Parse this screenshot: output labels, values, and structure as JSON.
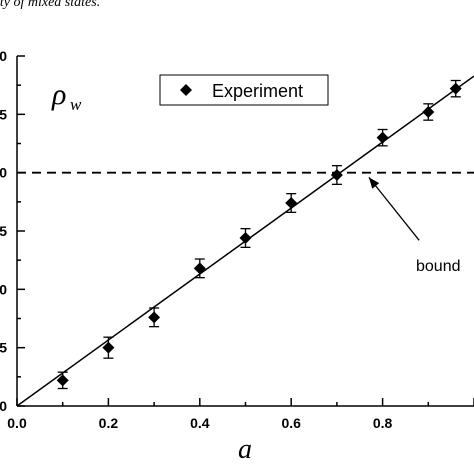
{
  "caption": "ity of mixed states.",
  "chart_data": {
    "type": "scatter",
    "xlabel": "a",
    "ylabel_symbol": "ρ",
    "ylabel_subscript": "w",
    "xlim": [
      0.0,
      1.0
    ],
    "ylim": [
      0.0,
      1.5
    ],
    "x_ticks": [
      "0.0",
      "0.2",
      "0.4",
      "0.6",
      "0.8"
    ],
    "y_ticks_partial": [
      "0",
      "5",
      "0",
      "5",
      "0",
      "5",
      "0"
    ],
    "legend": {
      "entries": [
        "Experiment"
      ],
      "placement": "top-center"
    },
    "series": [
      {
        "name": "Experiment",
        "marker": "diamond",
        "x": [
          0.1,
          0.2,
          0.3,
          0.4,
          0.5,
          0.6,
          0.7,
          0.8,
          0.9,
          0.96
        ],
        "y": [
          0.11,
          0.25,
          0.38,
          0.59,
          0.72,
          0.87,
          0.99,
          1.15,
          1.26,
          1.36
        ],
        "err": [
          0.035,
          0.045,
          0.04,
          0.04,
          0.04,
          0.04,
          0.04,
          0.035,
          0.035,
          0.035
        ]
      }
    ],
    "fit_line": {
      "x": [
        0.0,
        1.0
      ],
      "y": [
        0.0,
        1.414
      ]
    },
    "reference_line": {
      "y": 1.0,
      "style": "dashed"
    },
    "annotation": {
      "text": "bound",
      "arrow_from": [
        0.88,
        0.71
      ],
      "arrow_to": [
        0.77,
        0.98
      ]
    }
  }
}
